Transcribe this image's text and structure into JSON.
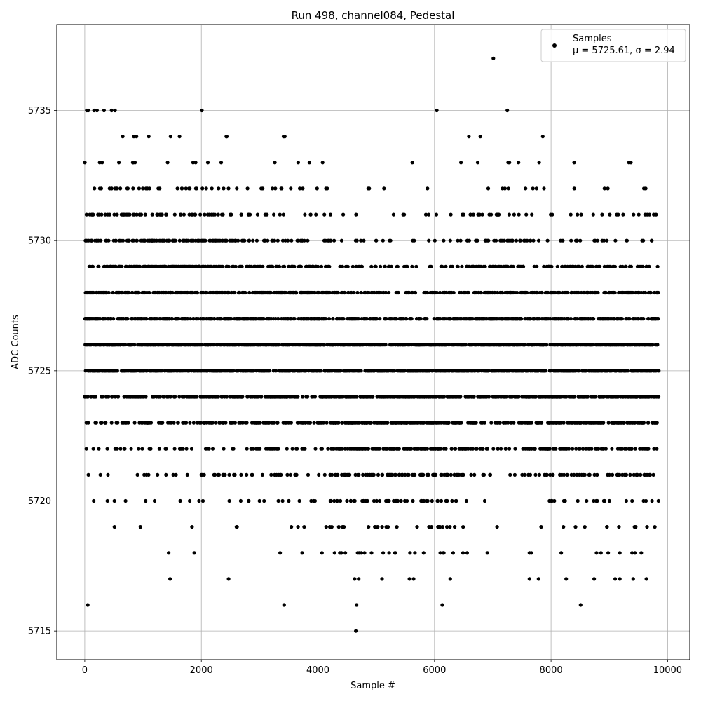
{
  "chart_data": {
    "type": "scatter",
    "title": "Run 498, channel084, Pedestal",
    "xlabel": "Sample #",
    "ylabel": "ADC Counts",
    "xlim": [
      -480,
      10380
    ],
    "ylim": [
      5713.9,
      5738.3
    ],
    "xticks": [
      0,
      2000,
      4000,
      6000,
      8000,
      10000
    ],
    "yticks": [
      5715,
      5720,
      5725,
      5730,
      5735
    ],
    "grid": true,
    "legend_position": "top-right",
    "series": [
      {
        "name": "Samples",
        "legend_stat": "μ = 5725.61, σ = 2.94",
        "color": "#000000",
        "mean": 5725.61,
        "sigma": 2.94,
        "n_samples": 9850,
        "outliers": [
          {
            "x": 7010,
            "y": 5737
          },
          {
            "x": 35,
            "y": 5735
          },
          {
            "x": 60,
            "y": 5735
          },
          {
            "x": 160,
            "y": 5735
          },
          {
            "x": 210,
            "y": 5735
          },
          {
            "x": 330,
            "y": 5735
          },
          {
            "x": 460,
            "y": 5735
          },
          {
            "x": 520,
            "y": 5735
          },
          {
            "x": 2010,
            "y": 5735
          },
          {
            "x": 6040,
            "y": 5735
          },
          {
            "x": 7250,
            "y": 5735
          },
          {
            "x": 1440,
            "y": 5718
          },
          {
            "x": 3730,
            "y": 5718
          },
          {
            "x": 4070,
            "y": 5718
          },
          {
            "x": 4400,
            "y": 5718
          },
          {
            "x": 4470,
            "y": 5718
          },
          {
            "x": 4710,
            "y": 5718
          },
          {
            "x": 4920,
            "y": 5718
          },
          {
            "x": 5120,
            "y": 5718
          },
          {
            "x": 5330,
            "y": 5718
          },
          {
            "x": 5580,
            "y": 5718
          },
          {
            "x": 6100,
            "y": 5718
          },
          {
            "x": 6160,
            "y": 5718
          },
          {
            "x": 6320,
            "y": 5718
          },
          {
            "x": 6560,
            "y": 5718
          },
          {
            "x": 7630,
            "y": 5718
          },
          {
            "x": 8780,
            "y": 5718
          },
          {
            "x": 8980,
            "y": 5718
          },
          {
            "x": 9180,
            "y": 5718
          },
          {
            "x": 9390,
            "y": 5718
          },
          {
            "x": 9440,
            "y": 5718
          },
          {
            "x": 4630,
            "y": 5717
          },
          {
            "x": 4700,
            "y": 5717
          },
          {
            "x": 5100,
            "y": 5717
          },
          {
            "x": 5570,
            "y": 5717
          },
          {
            "x": 6270,
            "y": 5717
          },
          {
            "x": 7630,
            "y": 5717
          },
          {
            "x": 8260,
            "y": 5717
          },
          {
            "x": 9100,
            "y": 5717
          },
          {
            "x": 9180,
            "y": 5717
          },
          {
            "x": 9410,
            "y": 5717
          },
          {
            "x": 4650,
            "y": 5715
          }
        ]
      }
    ]
  }
}
